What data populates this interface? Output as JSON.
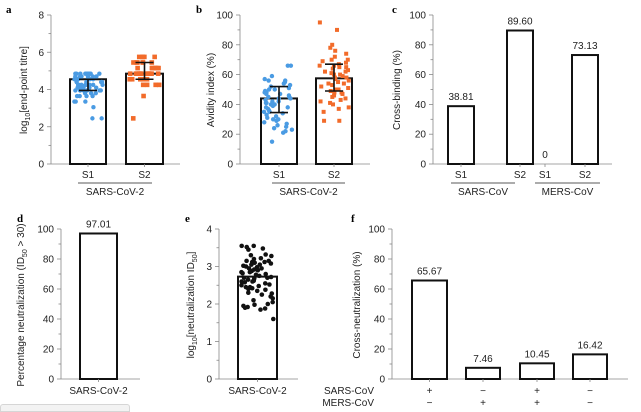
{
  "chart_data": [
    {
      "panel": "a",
      "type": "bar",
      "ylabel": "log10[end-point titre]",
      "ylim": [
        0,
        8
      ],
      "yticks": [
        0,
        2,
        4,
        6,
        8
      ],
      "categories": [
        "S1",
        "S2"
      ],
      "group_label": "SARS-CoV-2",
      "values": [
        4.55,
        4.85
      ],
      "error": [
        [
          3.95,
          4.55
        ],
        [
          4.55,
          5.45
        ]
      ],
      "point_colors": [
        "#4a9be3",
        "#f26b2a"
      ],
      "points": [
        [
          4.85,
          4.85,
          4.85,
          4.85,
          4.85,
          4.85,
          4.85,
          4.85,
          4.85,
          4.85,
          4.7,
          4.7,
          4.7,
          4.7,
          4.7,
          4.7,
          4.55,
          4.55,
          4.55,
          4.55,
          4.55,
          4.55,
          4.4,
          4.4,
          4.4,
          4.4,
          4.4,
          4.25,
          4.25,
          4.25,
          4.25,
          4.25,
          4.25,
          4.25,
          4.25,
          4.1,
          4.1,
          4.1,
          4.1,
          4.1,
          4.1,
          3.95,
          3.95,
          3.95,
          3.95,
          3.95,
          3.95,
          3.95,
          3.8,
          3.8,
          3.8,
          3.65,
          3.65,
          3.65,
          3.65,
          3.35,
          3.35,
          3.35,
          3.05,
          2.45,
          2.45
        ],
        [
          5.75,
          5.75,
          5.75,
          5.75,
          5.75,
          5.45,
          5.45,
          5.45,
          5.45,
          5.45,
          5.45,
          5.15,
          5.15,
          5.15,
          5.15,
          5.15,
          5.15,
          5.15,
          4.85,
          4.85,
          4.85,
          4.85,
          4.85,
          4.85,
          4.85,
          4.85,
          4.85,
          4.85,
          4.85,
          4.55,
          4.55,
          4.55,
          4.55,
          4.55,
          4.25,
          4.25,
          4.25,
          4.25,
          3.65,
          2.45
        ]
      ]
    },
    {
      "panel": "b",
      "type": "bar",
      "ylabel": "Avidity index (%)",
      "ylim": [
        0,
        100
      ],
      "yticks": [
        0,
        20,
        40,
        60,
        80,
        100
      ],
      "categories": [
        "S1",
        "S2"
      ],
      "group_label": "SARS-CoV-2",
      "values": [
        44,
        57.5
      ],
      "error": [
        [
          34.5,
          52
        ],
        [
          49,
          67
        ]
      ],
      "point_colors": [
        "#4a9be3",
        "#f26b2a"
      ],
      "points": [
        [
          66,
          66,
          59,
          57,
          56,
          56,
          55,
          54,
          53,
          52,
          51,
          50,
          49,
          48,
          48,
          47,
          46,
          45,
          45,
          44,
          43,
          42,
          42,
          41,
          40,
          40,
          39,
          38,
          37,
          36,
          35,
          34,
          33,
          32,
          31,
          30,
          29,
          28,
          27,
          26,
          25,
          24,
          23,
          22,
          21,
          15,
          50,
          47,
          44,
          41,
          38,
          35,
          30
        ],
        [
          95,
          90,
          80,
          78,
          76,
          74,
          72,
          70,
          69,
          68,
          67,
          66,
          65,
          65,
          64,
          63,
          62,
          61,
          60,
          60,
          59,
          58,
          57,
          56,
          55,
          54,
          53,
          52,
          51,
          50,
          50,
          49,
          48,
          47,
          46,
          45,
          44,
          43,
          42,
          41,
          40,
          38,
          37,
          35,
          29,
          29,
          62,
          58,
          54,
          66,
          70,
          48
        ]
      ]
    },
    {
      "panel": "c",
      "type": "bar",
      "ylabel": "Cross-binding (%)",
      "ylim": [
        0,
        100
      ],
      "yticks": [
        0,
        20,
        40,
        60,
        80,
        100
      ],
      "categories": [
        "S1",
        "S2",
        "S1",
        "S2"
      ],
      "groups": [
        "SARS-CoV",
        "MERS-CoV"
      ],
      "values": [
        38.81,
        89.6,
        0,
        73.13
      ],
      "data_labels": [
        "38.81",
        "89.60",
        "0",
        "73.13"
      ]
    },
    {
      "panel": "d",
      "type": "bar",
      "ylabel": "Percentage neutralization (ID50 > 30)",
      "ylim": [
        0,
        100
      ],
      "yticks": [
        0,
        20,
        40,
        60,
        80,
        100
      ],
      "categories": [
        "SARS-CoV-2"
      ],
      "values": [
        97.01
      ],
      "data_labels": [
        "97.01"
      ]
    },
    {
      "panel": "e",
      "type": "bar",
      "ylabel": "log10[neutralization ID50]",
      "ylim": [
        0,
        4
      ],
      "yticks": [
        0,
        1,
        2,
        3,
        4
      ],
      "categories": [
        "SARS-CoV-2"
      ],
      "values": [
        2.73
      ],
      "point_color": "#111111",
      "points": [
        3.55,
        3.55,
        3.52,
        3.48,
        3.45,
        3.32,
        3.3,
        3.28,
        3.22,
        3.2,
        3.15,
        3.15,
        3.12,
        3.1,
        3.08,
        3.05,
        3.02,
        3.0,
        2.98,
        2.95,
        2.92,
        2.9,
        2.88,
        2.85,
        2.82,
        2.8,
        2.78,
        2.75,
        2.72,
        2.7,
        2.68,
        2.65,
        2.62,
        2.6,
        2.58,
        2.55,
        2.52,
        2.5,
        2.48,
        2.45,
        2.42,
        2.4,
        2.38,
        2.35,
        2.3,
        2.25,
        2.2,
        2.15,
        2.1,
        2.05,
        2.0,
        1.98,
        1.95,
        1.92,
        1.9,
        1.88,
        1.85,
        1.6,
        2.85,
        2.6,
        3.05,
        2.45,
        2.28,
        2.95,
        2.7,
        3.12
      ]
    },
    {
      "panel": "f",
      "type": "bar",
      "ylabel": "Cross-neutralization (%)",
      "ylim": [
        0,
        100
      ],
      "yticks": [
        0,
        20,
        40,
        60,
        80,
        100
      ],
      "row_labels": [
        "SARS-CoV",
        "MERS-CoV"
      ],
      "categories": [
        [
          "+",
          "−"
        ],
        [
          "−",
          "+"
        ],
        [
          "+",
          "+"
        ],
        [
          "−",
          "−"
        ]
      ],
      "values": [
        65.67,
        7.46,
        10.45,
        16.42
      ],
      "data_labels": [
        "65.67",
        "7.46",
        "10.45",
        "16.42"
      ]
    }
  ],
  "labels": {
    "a": "a",
    "b": "b",
    "c": "c",
    "d": "d",
    "e": "e",
    "f": "f",
    "ylabel_a_main": "log",
    "ylabel_a_sub": "10",
    "ylabel_a_rest": "[end-point titre]",
    "ylabel_b": "Avidity index (%)",
    "ylabel_c": "Cross-binding (%)",
    "ylabel_d_main": "Percentage neutralization (ID",
    "ylabel_d_sub": "50",
    "ylabel_d_rest": " > 30)",
    "ylabel_e_main": "log",
    "ylabel_e_sub": "10",
    "ylabel_e_mid": "[neutralization ID",
    "ylabel_e_sub2": "50",
    "ylabel_e_rest": "]",
    "ylabel_f": "Cross-neutralization (%)"
  }
}
